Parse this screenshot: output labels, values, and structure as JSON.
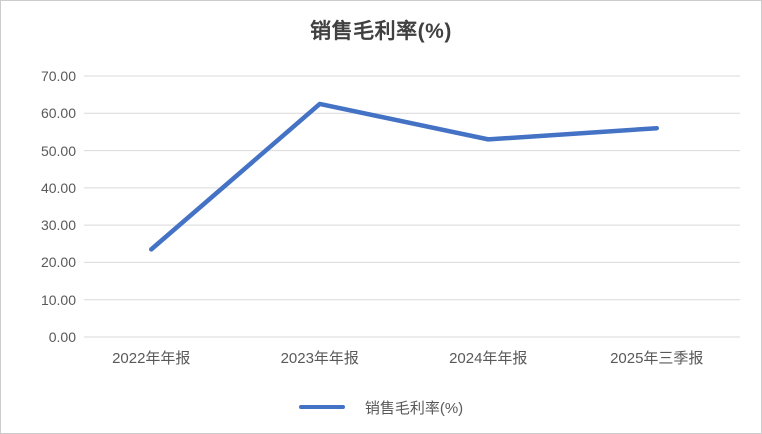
{
  "chart": {
    "title": "销售毛利率(%)",
    "legend": {
      "label": "销售毛利率(%)"
    },
    "colors": {
      "line": "#4472C4",
      "gridline": "#D9D9D9",
      "axis_text": "#595959",
      "title_text": "#404040",
      "background": "#FFFFFF",
      "border": "#CCCCCC"
    }
  },
  "chart_data": {
    "type": "line",
    "title": "销售毛利率(%)",
    "categories": [
      "2022年年报",
      "2023年年报",
      "2024年年报",
      "2025年三季报"
    ],
    "series": [
      {
        "name": "销售毛利率(%)",
        "color": "#4472C4",
        "values": [
          23.5,
          62.5,
          53.0,
          56.0
        ]
      }
    ],
    "xlabel": "",
    "ylabel": "",
    "ylim": [
      0,
      70
    ],
    "ytick_step": 10,
    "ytick_labels": [
      "0.00",
      "10.00",
      "20.00",
      "30.00",
      "40.00",
      "50.00",
      "60.00",
      "70.00"
    ],
    "grid": true,
    "legend_position": "bottom"
  }
}
